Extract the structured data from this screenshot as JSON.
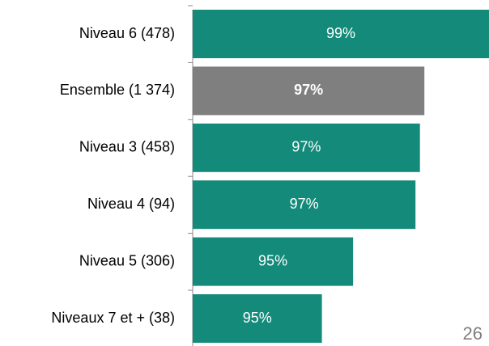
{
  "chart_data": {
    "type": "barh",
    "categories": [
      "Niveau 6 (478)",
      "Ensemble (1 374)",
      "Niveau 3 (458)",
      "Niveau 4 (94)",
      "Niveau 5 (306)",
      "Niveaux 7 et + (38)"
    ],
    "values": [
      98.7,
      96.9,
      96.8,
      96.7,
      95.3,
      94.6
    ],
    "value_labels": [
      "99%",
      "97%",
      "97%",
      "97%",
      "95%",
      "95%"
    ],
    "colors": [
      "#138a7a",
      "#7f7f7f",
      "#138a7a",
      "#138a7a",
      "#138a7a",
      "#138a7a"
    ],
    "bold": [
      false,
      true,
      false,
      false,
      false,
      false
    ],
    "xlim": [
      91.7,
      98.35
    ]
  },
  "page_number": "26"
}
